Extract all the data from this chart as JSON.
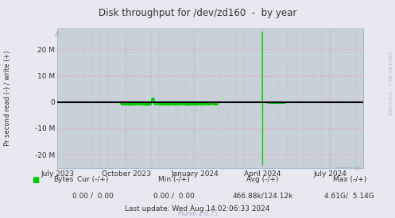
{
  "title": "Disk throughput for /dev/zd160  -  by year",
  "ylabel": "Pr second read (-) / write (+)",
  "background_color": "#e8e8f0",
  "plot_background_color": "#c8d0d8",
  "grid_color_major": "#ff8888",
  "grid_color_minor": "#aabbcc",
  "line_color": "#00cc00",
  "zero_line_color": "#000000",
  "ylim": [
    -25000000,
    28000000
  ],
  "yticks": [
    -20000000,
    -10000000,
    0,
    10000000,
    20000000
  ],
  "ytick_labels": [
    "-20 M",
    "-10 M",
    "0",
    "10 M",
    "20 M"
  ],
  "xstart": 1688169600,
  "xend": 1723593600,
  "xtick_positions": [
    1688169600,
    1696118400,
    1704067200,
    1711929600,
    1719792000
  ],
  "xtick_labels": [
    "July 2023",
    "October 2023",
    "January 2024",
    "April 2024",
    "July 2024"
  ],
  "watermark": "RRDTOOL / TOBI OETIKER",
  "munin_version": "Munin 2.0.75",
  "legend_label": "Bytes",
  "legend_color": "#00cc00",
  "footer_cur": "Cur (-/+)",
  "footer_cur_val": "0.00 /  0.00",
  "footer_min": "Min (-/+)",
  "footer_min_val": "0.00 /  0.00",
  "footer_avg": "Avg (-/+)",
  "footer_avg_val": "466.88k/124.12k",
  "footer_max": "Max (-/+)",
  "footer_max_val": "4.61G/  5.14G",
  "footer_last_update": "Last update: Wed Aug 14 02:06:33 2024",
  "spike_x_green": 1711929600,
  "spike_up_val": 26500000,
  "spike_down_val": -24000000,
  "activity_start": 1695513600,
  "activity_end": 1706745600,
  "small_spike_x": 1699200000,
  "april_negative_x": 1712534400
}
